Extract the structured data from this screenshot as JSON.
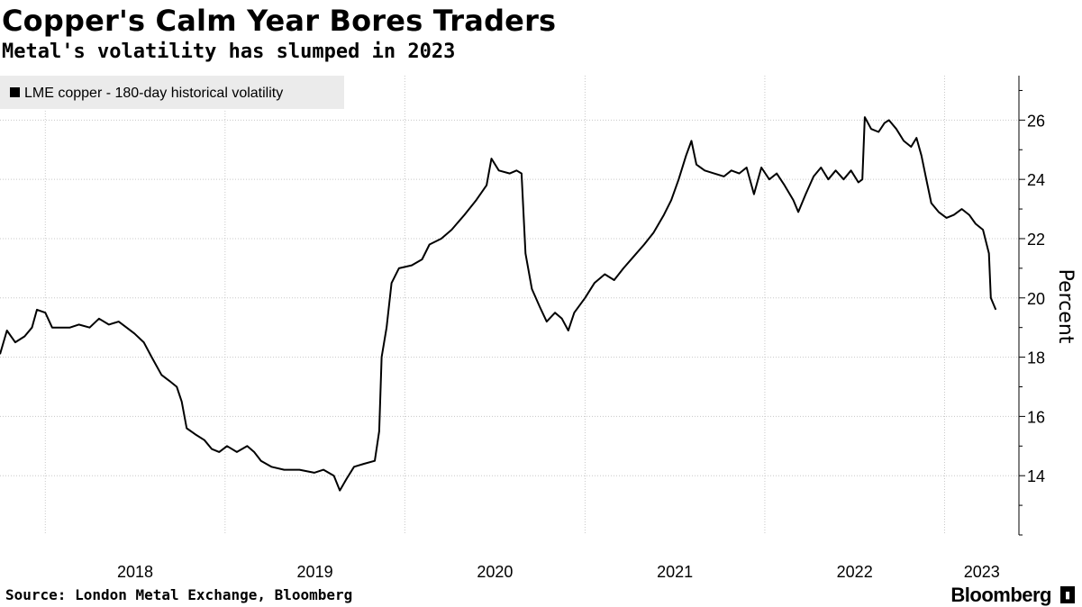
{
  "title": "Copper's Calm Year Bores Traders",
  "subtitle": "Metal's volatility has slumped in 2023",
  "source": "Source: London Metal Exchange, Bloomberg",
  "brand": "Bloomberg",
  "brand_icon": "bloomberg-terminal-icon",
  "chart_data": {
    "type": "line",
    "title": "Copper's Calm Year Bores Traders",
    "subtitle": "Metal's volatility has slumped in 2023",
    "ylabel": "Percent",
    "ylim": [
      12.0,
      27.5
    ],
    "yticks": [
      14,
      16,
      18,
      20,
      22,
      24,
      26
    ],
    "xlim": [
      "2017-10-01",
      "2023-06-01"
    ],
    "xticks": [
      "2018",
      "2019",
      "2020",
      "2021",
      "2022",
      "2023"
    ],
    "grid": true,
    "legend_position": "top-left",
    "line_color": "#000000",
    "series": [
      {
        "name": "LME copper - 180-day historical volatility",
        "points": [
          [
            "2017-10-01",
            18.1
          ],
          [
            "2017-10-15",
            18.9
          ],
          [
            "2017-11-01",
            18.5
          ],
          [
            "2017-11-20",
            18.7
          ],
          [
            "2017-12-05",
            19.0
          ],
          [
            "2017-12-15",
            19.6
          ],
          [
            "2018-01-01",
            19.5
          ],
          [
            "2018-01-15",
            19.0
          ],
          [
            "2018-02-01",
            19.0
          ],
          [
            "2018-02-20",
            19.0
          ],
          [
            "2018-03-10",
            19.1
          ],
          [
            "2018-04-01",
            19.0
          ],
          [
            "2018-04-20",
            19.3
          ],
          [
            "2018-05-10",
            19.1
          ],
          [
            "2018-05-30",
            19.2
          ],
          [
            "2018-06-15",
            19.0
          ],
          [
            "2018-07-01",
            18.8
          ],
          [
            "2018-07-20",
            18.5
          ],
          [
            "2018-08-05",
            18.0
          ],
          [
            "2018-08-25",
            17.4
          ],
          [
            "2018-09-10",
            17.2
          ],
          [
            "2018-09-25",
            17.0
          ],
          [
            "2018-10-05",
            16.5
          ],
          [
            "2018-10-15",
            15.6
          ],
          [
            "2018-11-01",
            15.4
          ],
          [
            "2018-11-20",
            15.2
          ],
          [
            "2018-12-05",
            14.9
          ],
          [
            "2018-12-20",
            14.8
          ],
          [
            "2019-01-05",
            15.0
          ],
          [
            "2019-01-25",
            14.8
          ],
          [
            "2019-02-15",
            15.0
          ],
          [
            "2019-03-01",
            14.8
          ],
          [
            "2019-03-15",
            14.5
          ],
          [
            "2019-04-05",
            14.3
          ],
          [
            "2019-05-01",
            14.2
          ],
          [
            "2019-06-01",
            14.2
          ],
          [
            "2019-07-01",
            14.1
          ],
          [
            "2019-07-20",
            14.2
          ],
          [
            "2019-08-10",
            14.0
          ],
          [
            "2019-08-22",
            13.5
          ],
          [
            "2019-09-05",
            13.9
          ],
          [
            "2019-09-20",
            14.3
          ],
          [
            "2019-10-10",
            14.4
          ],
          [
            "2019-11-01",
            14.5
          ],
          [
            "2019-11-10",
            15.5
          ],
          [
            "2019-11-15",
            18.0
          ],
          [
            "2019-11-25",
            19.0
          ],
          [
            "2019-12-05",
            20.5
          ],
          [
            "2019-12-20",
            21.0
          ],
          [
            "2020-01-15",
            21.1
          ],
          [
            "2020-02-05",
            21.3
          ],
          [
            "2020-02-20",
            21.8
          ],
          [
            "2020-03-15",
            22.0
          ],
          [
            "2020-04-05",
            22.3
          ],
          [
            "2020-05-01",
            22.8
          ],
          [
            "2020-05-25",
            23.3
          ],
          [
            "2020-06-15",
            23.8
          ],
          [
            "2020-06-25",
            24.7
          ],
          [
            "2020-07-10",
            24.3
          ],
          [
            "2020-08-01",
            24.2
          ],
          [
            "2020-08-15",
            24.3
          ],
          [
            "2020-08-25",
            24.2
          ],
          [
            "2020-09-02",
            21.5
          ],
          [
            "2020-09-15",
            20.3
          ],
          [
            "2020-10-01",
            19.7
          ],
          [
            "2020-10-15",
            19.2
          ],
          [
            "2020-11-01",
            19.5
          ],
          [
            "2020-11-15",
            19.3
          ],
          [
            "2020-11-28",
            18.9
          ],
          [
            "2020-12-10",
            19.5
          ],
          [
            "2021-01-01",
            20.0
          ],
          [
            "2021-01-20",
            20.5
          ],
          [
            "2021-02-10",
            20.8
          ],
          [
            "2021-03-01",
            20.6
          ],
          [
            "2021-03-20",
            21.0
          ],
          [
            "2021-04-10",
            21.4
          ],
          [
            "2021-05-01",
            21.8
          ],
          [
            "2021-05-20",
            22.2
          ],
          [
            "2021-06-10",
            22.8
          ],
          [
            "2021-06-25",
            23.3
          ],
          [
            "2021-07-10",
            24.0
          ],
          [
            "2021-07-25",
            24.8
          ],
          [
            "2021-08-05",
            25.3
          ],
          [
            "2021-08-15",
            24.5
          ],
          [
            "2021-09-01",
            24.3
          ],
          [
            "2021-09-20",
            24.2
          ],
          [
            "2021-10-10",
            24.1
          ],
          [
            "2021-10-25",
            24.3
          ],
          [
            "2021-11-10",
            24.2
          ],
          [
            "2021-11-25",
            24.4
          ],
          [
            "2021-12-10",
            23.5
          ],
          [
            "2021-12-25",
            24.4
          ],
          [
            "2022-01-10",
            24.0
          ],
          [
            "2022-01-25",
            24.2
          ],
          [
            "2022-02-10",
            23.8
          ],
          [
            "2022-02-28",
            23.3
          ],
          [
            "2022-03-10",
            22.9
          ],
          [
            "2022-03-25",
            23.5
          ],
          [
            "2022-04-10",
            24.1
          ],
          [
            "2022-04-25",
            24.4
          ],
          [
            "2022-05-10",
            24.0
          ],
          [
            "2022-05-25",
            24.3
          ],
          [
            "2022-06-10",
            24.0
          ],
          [
            "2022-06-25",
            24.3
          ],
          [
            "2022-07-10",
            23.9
          ],
          [
            "2022-07-18",
            24.0
          ],
          [
            "2022-07-23",
            26.1
          ],
          [
            "2022-08-05",
            25.7
          ],
          [
            "2022-08-20",
            25.6
          ],
          [
            "2022-09-01",
            25.9
          ],
          [
            "2022-09-10",
            26.0
          ],
          [
            "2022-09-25",
            25.7
          ],
          [
            "2022-10-10",
            25.3
          ],
          [
            "2022-10-25",
            25.1
          ],
          [
            "2022-11-05",
            25.4
          ],
          [
            "2022-11-15",
            24.8
          ],
          [
            "2022-11-25",
            24.0
          ],
          [
            "2022-12-05",
            23.2
          ],
          [
            "2022-12-20",
            22.9
          ],
          [
            "2023-01-05",
            22.7
          ],
          [
            "2023-01-20",
            22.8
          ],
          [
            "2023-02-05",
            23.0
          ],
          [
            "2023-02-20",
            22.8
          ],
          [
            "2023-03-05",
            22.5
          ],
          [
            "2023-03-20",
            22.3
          ],
          [
            "2023-04-01",
            21.5
          ],
          [
            "2023-04-05",
            20.0
          ],
          [
            "2023-04-15",
            19.6
          ]
        ]
      }
    ]
  }
}
